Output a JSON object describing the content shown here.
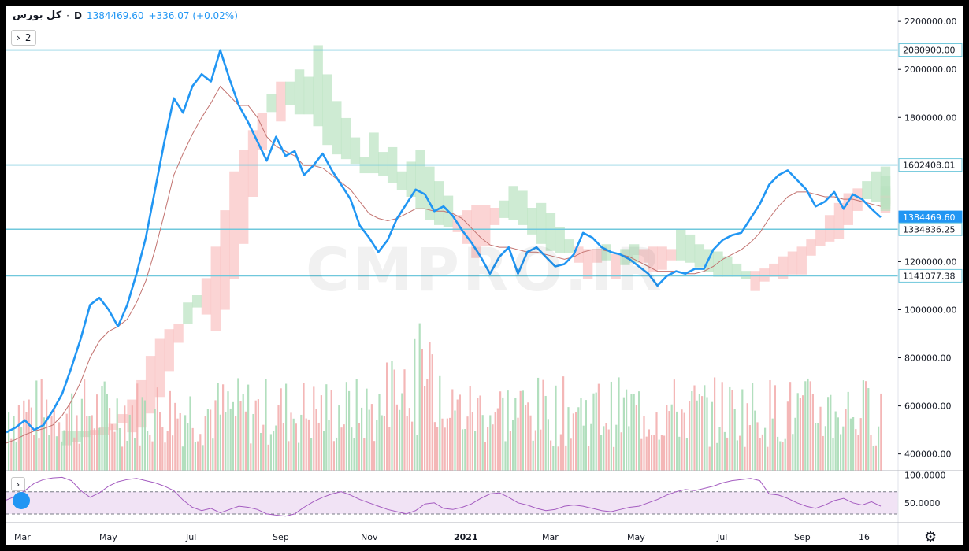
{
  "legend": {
    "symbol": "کل بورس",
    "interval": "D",
    "price": "1384469.60",
    "change": "+336.07 (+0.02%)",
    "collapse_count": "2"
  },
  "watermark": "CMPRO.IR",
  "colors": {
    "price_line": "#2196f3",
    "baseline": "#c2726f",
    "cloud_green": "#b9e3c1",
    "cloud_red": "#f9c2c2",
    "vol_green": "#a5d9b3",
    "vol_red": "#f2aaaa",
    "hline": "#70c8dc",
    "rsi_band": "#eedcf3",
    "rsi_line": "#a45cc0"
  },
  "chart_data": [
    {
      "type": "line",
      "title": "",
      "x_ticks": [
        "Mar",
        "May",
        "Jul",
        "Sep",
        "Nov",
        "2021",
        "Mar",
        "May",
        "Jul",
        "Sep",
        "16"
      ],
      "y_ticks": [
        "2200000.00",
        "2000000.00",
        "1800000.00",
        "1200000.00",
        "1000000.00",
        "800000.00",
        "600000.00",
        "400000.00"
      ],
      "ylim": [
        330000,
        2230000
      ],
      "price_labels": [
        "2080900.00",
        "1602408.01",
        "1384469.60",
        "1334836.25",
        "1141077.38"
      ],
      "horizontal_levels": [
        2080900,
        1602408.01,
        1334836.25,
        1141077.38
      ],
      "current_price": 1384469.6,
      "series": [
        {
          "values": [
            490000,
            510000,
            540000,
            500000,
            520000,
            580000,
            650000,
            760000,
            880000,
            1020000,
            1050000,
            1000000,
            930000,
            1020000,
            1150000,
            1300000,
            1500000,
            1700000,
            1880000,
            1820000,
            1930000,
            1980000,
            1950000,
            2080000,
            1960000,
            1850000,
            1780000,
            1700000,
            1620000,
            1720000,
            1640000,
            1660000,
            1560000,
            1600000,
            1650000,
            1580000,
            1520000,
            1460000,
            1350000,
            1300000,
            1240000,
            1290000,
            1380000,
            1440000,
            1500000,
            1480000,
            1410000,
            1430000,
            1390000,
            1330000,
            1280000,
            1220000,
            1150000,
            1220000,
            1260000,
            1150000,
            1240000,
            1260000,
            1220000,
            1180000,
            1190000,
            1230000,
            1320000,
            1300000,
            1260000,
            1240000,
            1230000,
            1210000,
            1180000,
            1150000,
            1100000,
            1140000,
            1160000,
            1150000,
            1170000,
            1170000,
            1250000,
            1290000,
            1310000,
            1320000,
            1380000,
            1440000,
            1520000,
            1560000,
            1580000,
            1540000,
            1500000,
            1430000,
            1450000,
            1490000,
            1420000,
            1480000,
            1460000,
            1420000,
            1384469.6
          ]
        },
        {
          "values": [
            445000,
            460000,
            480000,
            495000,
            505000,
            520000,
            560000,
            620000,
            700000,
            800000,
            870000,
            910000,
            930000,
            960000,
            1030000,
            1120000,
            1250000,
            1400000,
            1560000,
            1650000,
            1730000,
            1800000,
            1860000,
            1930000,
            1890000,
            1850000,
            1850000,
            1800000,
            1720000,
            1680000,
            1660000,
            1640000,
            1600000,
            1600000,
            1590000,
            1560000,
            1530000,
            1500000,
            1450000,
            1400000,
            1380000,
            1370000,
            1380000,
            1400000,
            1420000,
            1420000,
            1410000,
            1410000,
            1400000,
            1380000,
            1340000,
            1300000,
            1270000,
            1260000,
            1260000,
            1250000,
            1240000,
            1240000,
            1230000,
            1220000,
            1210000,
            1220000,
            1240000,
            1250000,
            1250000,
            1240000,
            1230000,
            1220000,
            1200000,
            1180000,
            1160000,
            1160000,
            1160000,
            1150000,
            1150000,
            1160000,
            1180000,
            1210000,
            1230000,
            1250000,
            1280000,
            1320000,
            1380000,
            1430000,
            1470000,
            1490000,
            1490000,
            1480000,
            1470000,
            1470000,
            1460000,
            1460000,
            1450000,
            1440000,
            1430000
          ]
        }
      ]
    },
    {
      "type": "line",
      "title": "",
      "y_ticks": [
        "100.0000",
        "50.0000"
      ],
      "ylim": [
        20,
        105
      ],
      "band": [
        30,
        70
      ],
      "values": [
        55,
        62,
        72,
        85,
        92,
        95,
        96,
        90,
        72,
        60,
        68,
        80,
        88,
        92,
        94,
        90,
        86,
        80,
        72,
        55,
        42,
        36,
        40,
        32,
        38,
        44,
        42,
        38,
        30,
        28,
        26,
        30,
        42,
        52,
        60,
        66,
        70,
        64,
        56,
        50,
        44,
        38,
        34,
        30,
        36,
        48,
        50,
        40,
        38,
        42,
        48,
        58,
        66,
        68,
        60,
        50,
        46,
        40,
        36,
        38,
        44,
        46,
        44,
        40,
        36,
        34,
        38,
        42,
        44,
        50,
        56,
        64,
        70,
        74,
        72,
        76,
        80,
        86,
        90,
        92,
        94,
        90,
        66,
        64,
        58,
        50,
        44,
        40,
        46,
        54,
        58,
        50,
        46,
        52,
        44
      ]
    }
  ]
}
